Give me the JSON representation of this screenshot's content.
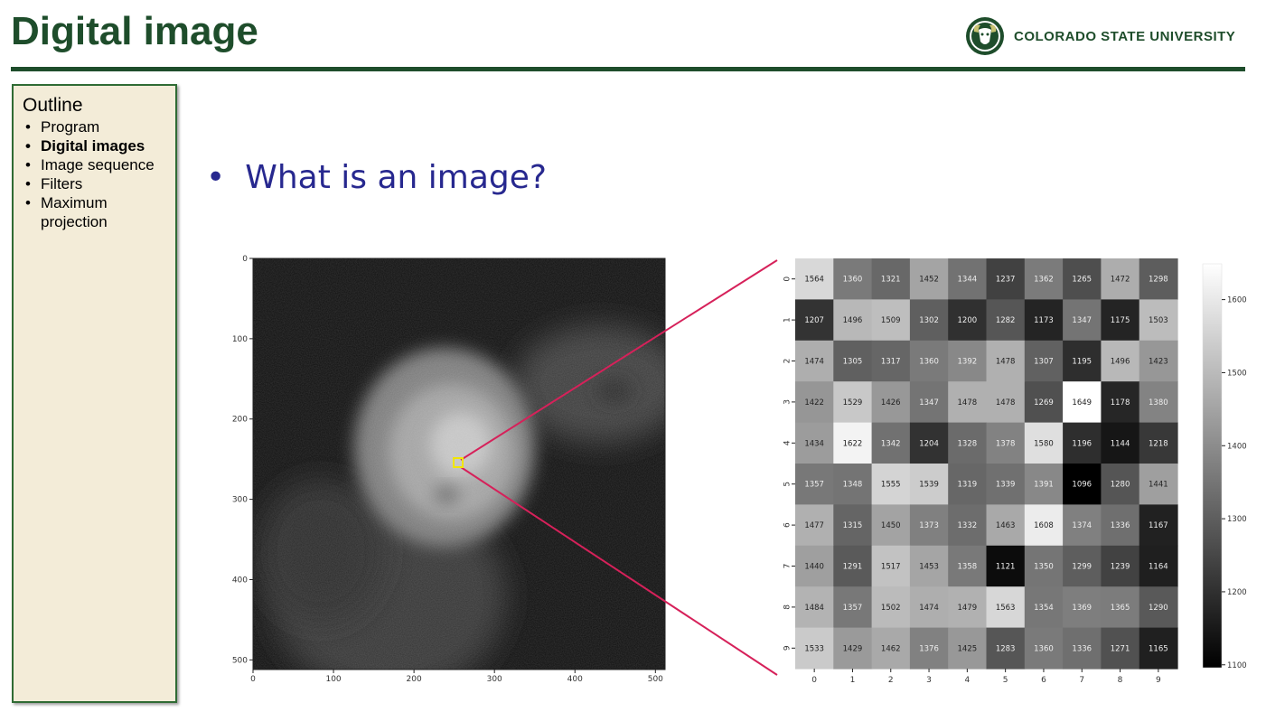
{
  "slide": {
    "title": "Digital image",
    "logo_text": "COLORADO STATE UNIVERSITY",
    "logo_icon": "ram-head-icon",
    "brand_color": "#1e4d2b",
    "bullet_text": "What is an image?",
    "bullet_color": "#27288f"
  },
  "outline": {
    "heading": "Outline",
    "items": [
      {
        "label": "Program",
        "active": false
      },
      {
        "label": "Digital images",
        "active": true
      },
      {
        "label": "Image sequence",
        "active": false
      },
      {
        "label": "Filters",
        "active": false
      },
      {
        "label": "Maximum projection",
        "active": false
      }
    ]
  },
  "microscopy": {
    "x_ticks": [
      "0",
      "100",
      "200",
      "300",
      "400",
      "500"
    ],
    "y_ticks": [
      "0",
      "100",
      "200",
      "300",
      "400",
      "500"
    ],
    "selection_color": "#f2e600",
    "connector_color": "#d6215a"
  },
  "chart_data": {
    "type": "heatmap",
    "colormap": "gray",
    "x_ticks": [
      "0",
      "1",
      "2",
      "3",
      "4",
      "5",
      "6",
      "7",
      "8",
      "9"
    ],
    "y_ticks": [
      "0",
      "1",
      "2",
      "3",
      "4",
      "5",
      "6",
      "7",
      "8",
      "9"
    ],
    "values": [
      [
        1564,
        1360,
        1321,
        1452,
        1344,
        1237,
        1362,
        1265,
        1472,
        1298
      ],
      [
        1207,
        1496,
        1509,
        1302,
        1200,
        1282,
        1173,
        1347,
        1175,
        1503
      ],
      [
        1474,
        1305,
        1317,
        1360,
        1392,
        1478,
        1307,
        1195,
        1496,
        1423
      ],
      [
        1422,
        1529,
        1426,
        1347,
        1478,
        1478,
        1269,
        1649,
        1178,
        1380
      ],
      [
        1434,
        1622,
        1342,
        1204,
        1328,
        1378,
        1580,
        1196,
        1144,
        1218
      ],
      [
        1357,
        1348,
        1555,
        1539,
        1319,
        1339,
        1391,
        1096,
        1280,
        1441
      ],
      [
        1477,
        1315,
        1450,
        1373,
        1332,
        1463,
        1608,
        1374,
        1336,
        1167
      ],
      [
        1440,
        1291,
        1517,
        1453,
        1358,
        1121,
        1350,
        1299,
        1239,
        1164
      ],
      [
        1484,
        1357,
        1502,
        1474,
        1479,
        1563,
        1354,
        1369,
        1365,
        1290
      ],
      [
        1533,
        1429,
        1462,
        1376,
        1425,
        1283,
        1360,
        1336,
        1271,
        1165
      ]
    ],
    "colorbar_range": [
      1096,
      1649
    ],
    "colorbar_ticks": [
      "1600",
      "1500",
      "1400",
      "1300",
      "1200",
      "1100"
    ]
  }
}
